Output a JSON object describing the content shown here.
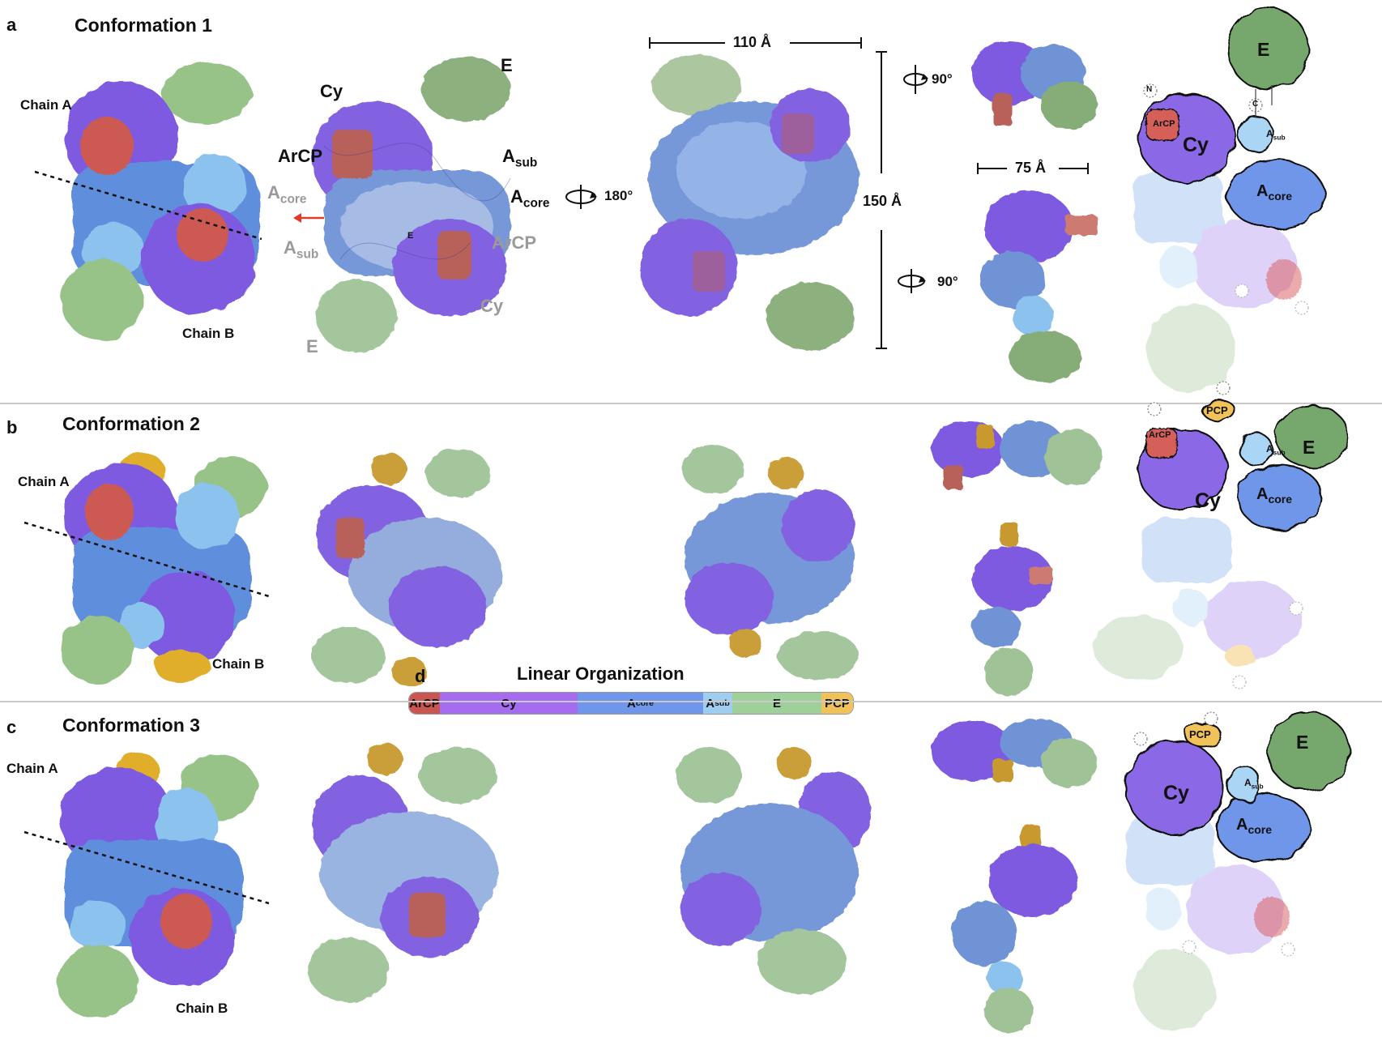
{
  "panel_a": {
    "label": "a",
    "title": "Conformation 1",
    "chain_a": "Chain A",
    "chain_b": "Chain B",
    "cy": "Cy",
    "e": "E",
    "arcp": "ArCP",
    "a": "A",
    "sub": "sub",
    "core": "core",
    "e_small": "E",
    "rot180": "180°",
    "dim_110": "110 Å",
    "dim_150": "150 Å",
    "dim_75": "75 Å",
    "rot90_top": "90°",
    "rot90_bottom": "90°"
  },
  "panel_b": {
    "label": "b",
    "title": "Conformation 2",
    "chain_a": "Chain A",
    "chain_b": "Chain B"
  },
  "panel_c": {
    "label": "c",
    "title": "Conformation 3",
    "chain_a": "Chain A",
    "chain_b": "Chain B"
  },
  "panel_d": {
    "label": "d",
    "title": "Linear Organization",
    "segments": [
      {
        "name": "ArCP",
        "color": "#c9574f"
      },
      {
        "name": "Cy",
        "color": "#a56cf0"
      },
      {
        "name": "A",
        "sub": "core",
        "color": "#6f96ea"
      },
      {
        "name": "A",
        "sub": "sub",
        "color": "#9fcdf0"
      },
      {
        "name": "E",
        "color": "#9fd09a"
      },
      {
        "name": "PCP",
        "color": "#f2c25a"
      }
    ]
  },
  "schematic": {
    "e": "E",
    "cy": "Cy",
    "arcp": "ArCP",
    "pcp": "PCP",
    "a": "A",
    "core": "core",
    "sub": "sub",
    "n": "N",
    "c": "C"
  },
  "colors": {
    "purple": "#7d5ae0",
    "red": "#cc5a52",
    "blue": "#5f8fdc",
    "lightblue": "#8cc3ee",
    "green": "#97c389",
    "yellow": "#e0ae2c"
  }
}
